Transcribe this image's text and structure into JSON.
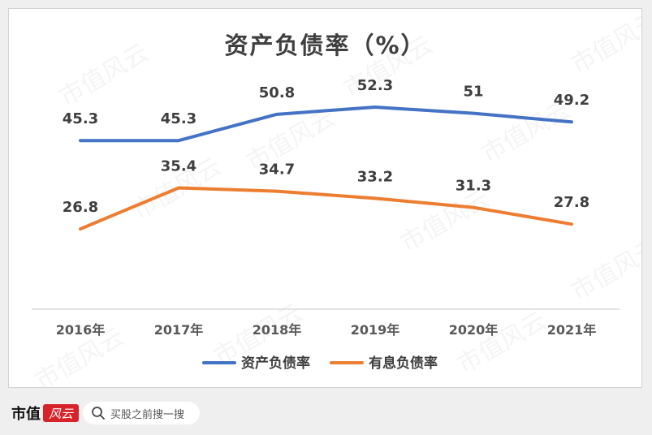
{
  "chart_data": {
    "type": "line",
    "title": "资产负债率（%）",
    "categories": [
      "2016年",
      "2017年",
      "2018年",
      "2019年",
      "2020年",
      "2021年"
    ],
    "series": [
      {
        "name": "资产负债率",
        "color": "#4472c4",
        "values": [
          45.3,
          45.3,
          50.8,
          52.3,
          51,
          49.2
        ]
      },
      {
        "name": "有息负债率",
        "color": "#ed7d31",
        "values": [
          26.8,
          35.4,
          34.7,
          33.2,
          31.3,
          27.8
        ]
      }
    ],
    "ylim": [
      10,
      63
    ],
    "grid": false,
    "legend": "bottom",
    "data_labels": true,
    "axis_color": "#d9d9d9",
    "watermark": "市值风云"
  },
  "footer": {
    "brand": "市值",
    "logo_text": "风云",
    "search_placeholder": "买股之前搜一搜",
    "search_icon": "search-icon"
  }
}
